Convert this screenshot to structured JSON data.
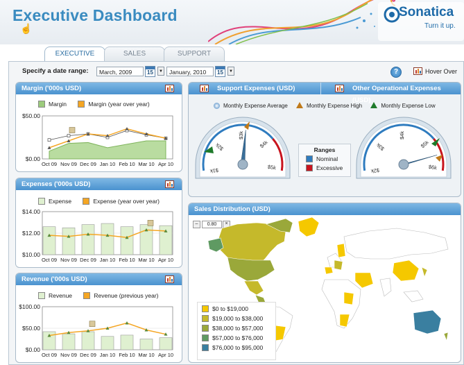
{
  "header": {
    "title": "Executive Dashboard",
    "logo_text": "Sonatica",
    "logo_tagline": "Turn it up."
  },
  "tabs": [
    {
      "label": "EXECUTIVE",
      "active": true
    },
    {
      "label": "SALES",
      "active": false
    },
    {
      "label": "SUPPORT",
      "active": false
    }
  ],
  "date_range": {
    "label": "Specify a date range:",
    "from": "March, 2009",
    "to": "January, 2010",
    "calendar_day": "15"
  },
  "toolbar": {
    "help": "?",
    "hover_over": "Hover Over"
  },
  "margin": {
    "title": "Margin ('000s USD)",
    "legend": [
      "Margin",
      "Margin (year over year)"
    ],
    "colors": {
      "primary": "#9ccb7c",
      "secondary": "#f5a623"
    },
    "chart_data": {
      "type": "area",
      "x": [
        "Oct 09",
        "Nov 09",
        "Dec 09",
        "Jan 10",
        "Feb 10",
        "Mar 10",
        "Apr 10"
      ],
      "yticks": [
        "$50.00",
        "$0.00"
      ],
      "ylim": [
        0,
        50
      ],
      "series": [
        {
          "name": "Margin",
          "values": [
            9,
            18,
            19,
            13,
            17,
            21,
            21
          ]
        },
        {
          "name": "Margin (year over year)",
          "values": [
            22,
            27,
            29,
            25,
            33,
            28,
            24
          ]
        }
      ]
    }
  },
  "expenses": {
    "title": "Expenses ('000s USD)",
    "legend": [
      "Expense",
      "Expense (year over year)"
    ],
    "chart_data": {
      "type": "bar",
      "x": [
        "Oct 09",
        "Nov 09",
        "Dec 09",
        "Jan 10",
        "Feb 10",
        "Mar 10",
        "Apr 10"
      ],
      "yticks": [
        "$14.00",
        "$12.00",
        "$10.00"
      ],
      "ylim": [
        10,
        14
      ],
      "series": [
        {
          "name": "Expense",
          "values": [
            12.6,
            12.5,
            12.8,
            12.9,
            12.6,
            12.8,
            12.7
          ]
        },
        {
          "name": "Expense (year over year)",
          "values": [
            11.8,
            11.7,
            11.9,
            11.8,
            11.6,
            12.3,
            12.2
          ]
        }
      ]
    }
  },
  "revenue": {
    "title": "Revenue ('000s USD)",
    "legend": [
      "Revenue",
      "Revenue (previous year)"
    ],
    "chart_data": {
      "type": "bar",
      "x": [
        "Oct 09",
        "Nov 09",
        "Dec 09",
        "Jan 10",
        "Feb 10",
        "Mar 10",
        "Apr 10"
      ],
      "yticks": [
        "$100.00",
        "$50.00",
        "$0.00"
      ],
      "ylim": [
        0,
        100
      ],
      "series": [
        {
          "name": "Revenue",
          "values": [
            42,
            37,
            42,
            31,
            34,
            25,
            28
          ]
        },
        {
          "name": "Revenue (previous year)",
          "values": [
            33,
            40,
            44,
            50,
            62,
            46,
            36
          ]
        }
      ]
    }
  },
  "support": {
    "title": "Support Expenses (USD)",
    "other_title": "Other Operational Expenses (USD)",
    "legend": [
      "Monthly Expense Average",
      "Monthly Expense High",
      "Monthly Expense Low"
    ],
    "gauge_left": {
      "ticks": [
        "$1k",
        "$2k",
        "$3k",
        "$4k",
        "$5k"
      ],
      "value": 3.1
    },
    "gauge_right": {
      "ticks": [
        "$2k",
        "$3k",
        "$4k",
        "$5k",
        "$6k"
      ],
      "value": 5.5
    },
    "ranges_title": "Ranges",
    "ranges": [
      {
        "label": "Nominal",
        "color": "#2f7cbf"
      },
      {
        "label": "Excessive",
        "color": "#c8141e"
      }
    ]
  },
  "sales": {
    "title": "Sales Distribution (USD)",
    "zoom": "0.80",
    "legend": [
      {
        "label": "$0 to $19,000",
        "color": "#f5c800"
      },
      {
        "label": "$19,000 to $38,000",
        "color": "#c5b92b"
      },
      {
        "label": "$38,000 to $57,000",
        "color": "#9aa83a"
      },
      {
        "label": "$57,000 to $76,000",
        "color": "#5f9a62"
      },
      {
        "label": "$76,000 to $95,000",
        "color": "#3a7fa0"
      }
    ]
  }
}
